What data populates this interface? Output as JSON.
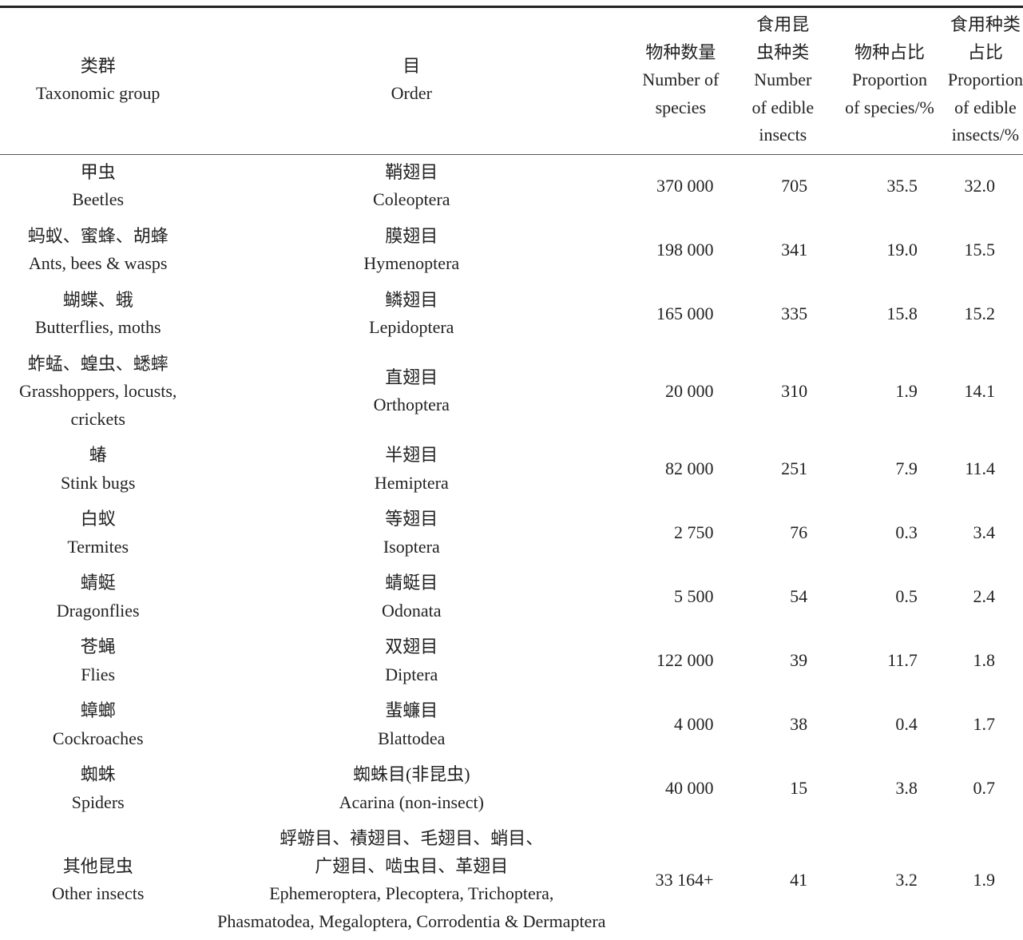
{
  "header": {
    "group": [
      "类群",
      "Taxonomic group"
    ],
    "order": [
      "目",
      "Order"
    ],
    "num_species": [
      "物种数量",
      "Number of",
      "species"
    ],
    "num_edible": [
      "食用昆",
      "虫种类",
      "Number",
      "of edible",
      "insects"
    ],
    "prop_species": [
      "物种占比",
      "Proportion",
      "of species/%"
    ],
    "prop_edible": [
      "食用种类",
      "占比",
      "Proportion",
      "of edible",
      "insects/%"
    ]
  },
  "rows": [
    {
      "group": [
        "甲虫",
        "Beetles"
      ],
      "order": [
        "鞘翅目",
        "Coleoptera"
      ],
      "num": "370 000",
      "edible": "705",
      "prop": "35.5",
      "edprop": "32.0"
    },
    {
      "group": [
        "蚂蚁、蜜蜂、胡蜂",
        "Ants, bees & wasps"
      ],
      "order": [
        "膜翅目",
        "Hymenoptera"
      ],
      "num": "198 000",
      "edible": "341",
      "prop": "19.0",
      "edprop": "15.5"
    },
    {
      "group": [
        "蝴蝶、蛾",
        "Butterflies, moths"
      ],
      "order": [
        "鳞翅目",
        "Lepidoptera"
      ],
      "num": "165 000",
      "edible": "335",
      "prop": "15.8",
      "edprop": "15.2"
    },
    {
      "group": [
        "蚱蜢、蝗虫、蟋蟀",
        "Grasshoppers, locusts,",
        "crickets"
      ],
      "order": [
        "直翅目",
        "Orthoptera"
      ],
      "num": "20 000",
      "edible": "310",
      "prop": "1.9",
      "edprop": "14.1"
    },
    {
      "group": [
        "蝽",
        "Stink bugs"
      ],
      "order": [
        "半翅目",
        "Hemiptera"
      ],
      "num": "82 000",
      "edible": "251",
      "prop": "7.9",
      "edprop": "11.4"
    },
    {
      "group": [
        "白蚁",
        "Termites"
      ],
      "order": [
        "等翅目",
        "Isoptera"
      ],
      "num": "2 750",
      "edible": "76",
      "prop": "0.3",
      "edprop": "3.4"
    },
    {
      "group": [
        "蜻蜓",
        "Dragonflies"
      ],
      "order": [
        "蜻蜓目",
        "Odonata"
      ],
      "num": "5 500",
      "edible": "54",
      "prop": "0.5",
      "edprop": "2.4"
    },
    {
      "group": [
        "苍蝇",
        "Flies"
      ],
      "order": [
        "双翅目",
        "Diptera"
      ],
      "num": "122 000",
      "edible": "39",
      "prop": "11.7",
      "edprop": "1.8"
    },
    {
      "group": [
        "蟑螂",
        "Cockroaches"
      ],
      "order": [
        "蜚蠊目",
        "Blattodea"
      ],
      "num": "4 000",
      "edible": "38",
      "prop": "0.4",
      "edprop": "1.7"
    },
    {
      "group": [
        "蜘蛛",
        "Spiders"
      ],
      "order": [
        "蜘蛛目(非昆虫)",
        "Acarina (non-insect)"
      ],
      "num": "40 000",
      "edible": "15",
      "prop": "3.8",
      "edprop": "0.7"
    },
    {
      "group": [
        "其他昆虫",
        "Other insects"
      ],
      "order": [
        "蜉蝣目、襀翅目、毛翅目、蛸目、",
        "广翅目、啮虫目、革翅目",
        "Ephemeroptera, Plecoptera, Trichoptera,",
        "Phasmatodea, Megaloptera, Corrodentia & Dermaptera"
      ],
      "num": "33 164+",
      "edible": "41",
      "prop": "3.2",
      "edprop": "1.9"
    }
  ]
}
